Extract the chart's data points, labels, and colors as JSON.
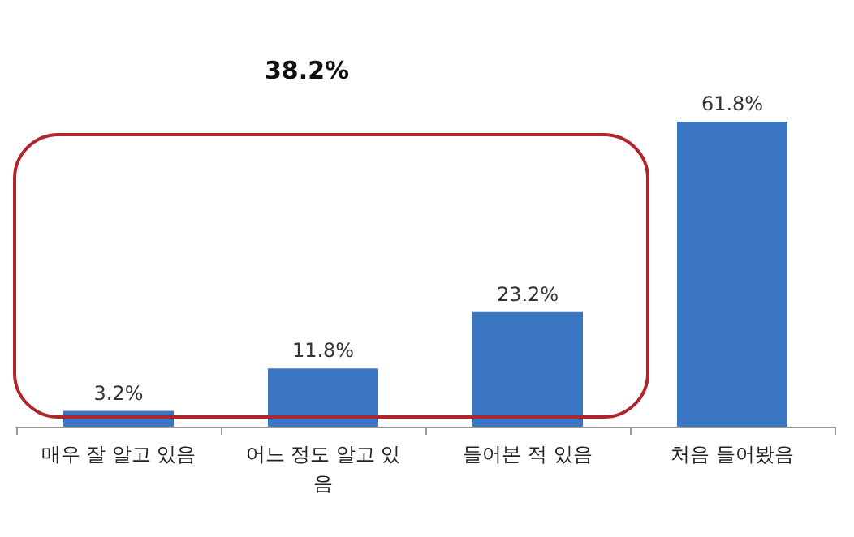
{
  "chart_data": {
    "type": "bar",
    "categories": [
      "매우 잘 알고 있음",
      "어느 정도 알고 있음",
      "들어본 적 있음",
      "처음 들어봤음"
    ],
    "values": [
      3.2,
      11.8,
      23.2,
      61.8
    ],
    "value_labels": [
      "3.2%",
      "11.8%",
      "23.2%",
      "61.8%"
    ],
    "color": "#3b76c2",
    "annotations": [
      "38.2%"
    ]
  }
}
